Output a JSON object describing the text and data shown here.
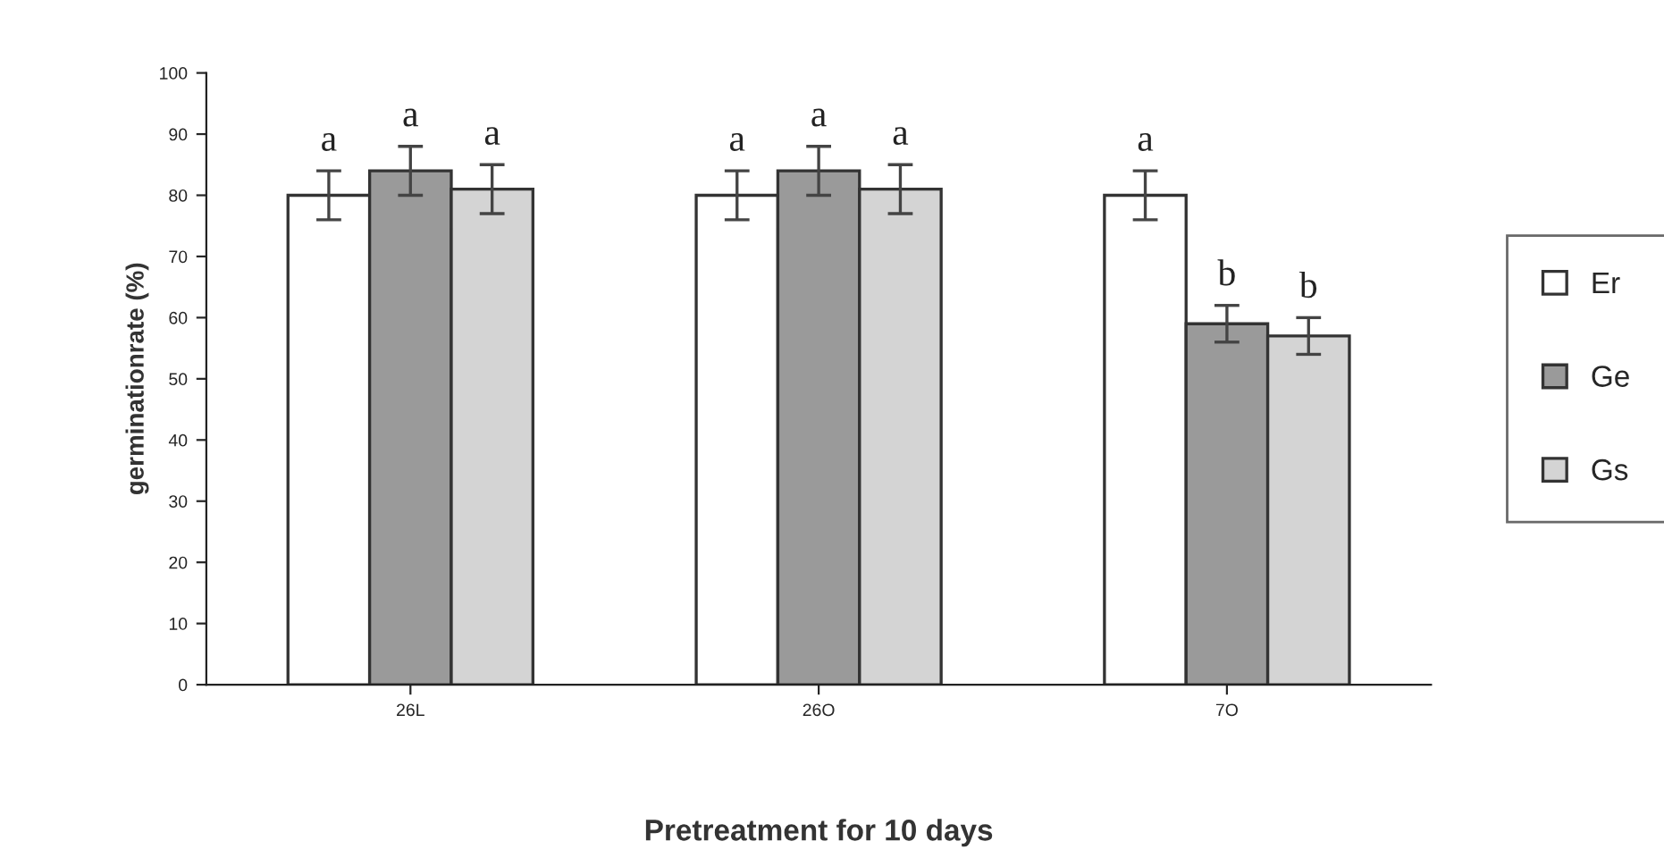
{
  "chart_data": {
    "type": "bar",
    "xlabel": "Pretreatment for 10 days",
    "ylabel": "germinationrate (%)",
    "categories": [
      "26L",
      "26O",
      "7O"
    ],
    "series": [
      {
        "name": "Er",
        "color": "#ffffff",
        "values": [
          80,
          80,
          80
        ],
        "errors": [
          4,
          4,
          4
        ],
        "value_labels": [
          "a",
          "a",
          "a"
        ]
      },
      {
        "name": "Ge",
        "color": "#9a9a9a",
        "values": [
          84,
          84,
          59
        ],
        "errors": [
          4,
          4,
          3
        ],
        "value_labels": [
          "a",
          "a",
          "b"
        ]
      },
      {
        "name": "Gs",
        "color": "#d4d4d4",
        "values": [
          81,
          81,
          57
        ],
        "errors": [
          4,
          4,
          3
        ],
        "value_labels": [
          "a",
          "a",
          "b"
        ]
      }
    ],
    "ylim": [
      0,
      100
    ],
    "yticks": [
      0,
      10,
      20,
      30,
      40,
      50,
      60,
      70,
      80,
      90,
      100
    ],
    "grid": false,
    "legend": "right"
  }
}
